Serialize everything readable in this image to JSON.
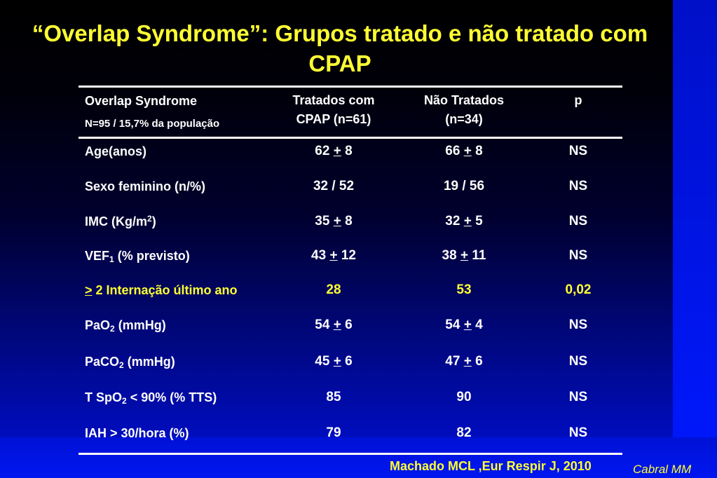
{
  "title": "“Overlap Syndrome”: Grupos tratado e não tratado com CPAP",
  "table": {
    "header": {
      "col0_line1": "Overlap Syndrome",
      "col0_line2": "N=95 / 15,7% da população",
      "col1_line1": "Tratados com",
      "col1_line2": "CPAP (n=61)",
      "col2_line1": "Não Tratados",
      "col2_line2": "(n=34)",
      "col3": "p"
    },
    "rows": [
      {
        "label": "Age(anos)",
        "t_a": "62",
        "t_pm": "+",
        "t_b": "8",
        "n_a": "66",
        "n_pm": "+",
        "n_b": "8",
        "p": "NS"
      },
      {
        "label": "Sexo feminino (n/%)",
        "t": "32 / 52",
        "n": "19 / 56",
        "p": "NS"
      },
      {
        "label_a": "IMC (Kg/m",
        "label_sup": "2",
        "label_b": ")",
        "t_a": "35",
        "t_pm": "+",
        "t_b": "8",
        "n_a": "32",
        "n_pm": "+",
        "n_b": "5",
        "p": "NS"
      },
      {
        "label_a": "VEF",
        "label_sub": "1",
        "label_b": " (% previsto)",
        "t_a": "43",
        "t_pm": "+",
        "t_b": "12",
        "n_a": "38",
        "n_pm": "+",
        "n_b": "11",
        "p": "NS"
      },
      {
        "label_sym": ">",
        "label_b": " 2 Internação último ano",
        "t": "28",
        "n": "53",
        "p": "0,02"
      },
      {
        "label_a": "PaO",
        "label_sub": "2",
        "label_b": " (mmHg)",
        "t_a": "54",
        "t_pm": "+",
        "t_b": "6",
        "n_a": "54",
        "n_pm": "+",
        "n_b": "4",
        "p": "NS"
      },
      {
        "label_a": "PaCO",
        "label_sub": "2",
        "label_b": " (mmHg)",
        "t_a": "45",
        "t_pm": "+",
        "t_b": "6",
        "n_a": "47",
        "n_pm": "+",
        "n_b": "6",
        "p": "NS"
      },
      {
        "label_a": "T SpO",
        "label_sub": "2",
        "label_b": " < 90% (% TTS)",
        "t": "85",
        "n": "90",
        "p": "NS"
      },
      {
        "label": "IAH > 30/hora (%)",
        "t": "79",
        "n": "82",
        "p": "NS"
      }
    ]
  },
  "citation": "Machado MCL ,Eur Respir J, 2010",
  "author": "Cabral MM",
  "colors": {
    "title": "#ffff33",
    "text": "#ffffff",
    "highlight": "#ffff33",
    "background_dark": "#000000",
    "background_blue": "#0016f0"
  }
}
